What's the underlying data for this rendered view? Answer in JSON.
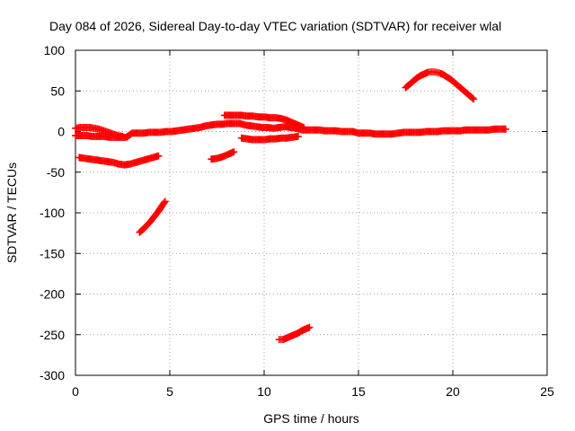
{
  "chart_data": {
    "type": "scatter",
    "title": "Day 084 of 2026, Sidereal Day-to-day VTEC variation (SDTVAR) for receiver wlal",
    "xlabel": "GPS time / hours",
    "ylabel": "SDTVAR / TECUs",
    "xlim": [
      0,
      25
    ],
    "ylim": [
      -300,
      100
    ],
    "xticks": [
      0,
      5,
      10,
      15,
      20,
      25
    ],
    "yticks": [
      -300,
      -250,
      -200,
      -150,
      -100,
      -50,
      0,
      50,
      100
    ],
    "xtick_labels": [
      "0",
      "5",
      "10",
      "15",
      "20",
      "25"
    ],
    "ytick_labels": [
      "-300",
      "-250",
      "-200",
      "-150",
      "-100",
      "-50",
      "0",
      "50",
      "100"
    ],
    "grid": true,
    "legend": "none",
    "marker": "plus",
    "color": "#ff0000",
    "series": [
      {
        "x": [
          0.0,
          0.3,
          0.6,
          0.9,
          1.2,
          1.5,
          1.8,
          2.1,
          2.4,
          2.7,
          3.0,
          3.3,
          3.6,
          3.9,
          4.2,
          4.5,
          4.8,
          5.1,
          5.4,
          5.7,
          6.0,
          6.3,
          6.6,
          6.9,
          7.2,
          7.5,
          7.8,
          8.1,
          8.4,
          8.7,
          9.0,
          9.3,
          9.6,
          9.9,
          10.2,
          10.5,
          10.8,
          11.1,
          11.4,
          11.7,
          12.0,
          12.3,
          12.6,
          12.9,
          13.2,
          13.5,
          13.8,
          14.1,
          14.4,
          14.7,
          15.0,
          15.3,
          15.6,
          15.9,
          16.2,
          16.5,
          16.8,
          17.1,
          17.4,
          17.7,
          18.0,
          18.3,
          18.6,
          18.9,
          19.2,
          19.5,
          19.8,
          20.1,
          20.4,
          20.7,
          21.0,
          21.3,
          21.6,
          21.9,
          22.2,
          22.5,
          22.8
        ],
        "y": [
          -5,
          -5,
          -5,
          -6,
          -6,
          -6,
          -7,
          -7,
          -7,
          -7,
          -2,
          -2,
          -2,
          -1,
          -1,
          -1,
          0,
          0,
          1,
          2,
          3,
          4,
          5,
          7,
          8,
          9,
          9,
          10,
          10,
          10,
          8,
          7,
          6,
          5,
          5,
          4,
          5,
          6,
          5,
          4,
          2,
          2,
          2,
          2,
          1,
          1,
          1,
          0,
          0,
          0,
          -2,
          -2,
          -2,
          -3,
          -3,
          -3,
          -3,
          -2,
          -1,
          -1,
          -1,
          -1,
          0,
          0,
          0,
          1,
          1,
          1,
          1,
          2,
          2,
          2,
          2,
          2,
          3,
          3,
          3
        ]
      },
      {
        "x": [
          0.0,
          0.25,
          0.5,
          0.75,
          1.0,
          1.25,
          1.5,
          1.75,
          2.0,
          2.25,
          2.5
        ],
        "y": [
          4,
          5,
          5,
          5,
          4,
          3,
          1,
          -1,
          -3,
          -5,
          -6
        ]
      },
      {
        "x": [
          7.9,
          8.2,
          8.5,
          8.8,
          9.1,
          9.4,
          9.7,
          10.0,
          10.3,
          10.6,
          10.9,
          11.2,
          11.5,
          11.8,
          12.1
        ],
        "y": [
          20,
          20,
          20,
          20,
          19,
          19,
          18,
          18,
          17,
          17,
          16,
          14,
          11,
          8,
          5
        ]
      },
      {
        "x": [
          8.8,
          9.1,
          9.4,
          9.7,
          10.0,
          10.3,
          10.6,
          10.9,
          11.2,
          11.5,
          11.8
        ],
        "y": [
          -8,
          -9,
          -10,
          -10,
          -10,
          -9,
          -9,
          -8,
          -8,
          -7,
          -6
        ]
      },
      {
        "x": [
          0.2,
          0.5,
          0.8,
          1.1,
          1.4,
          1.7,
          2.0,
          2.3,
          2.6,
          2.9,
          3.2,
          3.5,
          3.8,
          4.1,
          4.4
        ],
        "y": [
          -32,
          -33,
          -34,
          -35,
          -36,
          -37,
          -38,
          -40,
          -41,
          -40,
          -38,
          -36,
          -34,
          -32,
          -30
        ]
      },
      {
        "x": [
          7.2,
          7.5,
          7.8,
          8.1,
          8.4
        ],
        "y": [
          -34,
          -33,
          -31,
          -28,
          -25
        ]
      },
      {
        "x": [
          3.4,
          3.6,
          3.8,
          4.0,
          4.2,
          4.4,
          4.6,
          4.75
        ],
        "y": [
          -124,
          -120,
          -115,
          -110,
          -104,
          -98,
          -91,
          -86
        ]
      },
      {
        "x": [
          10.8,
          11.0,
          11.2,
          11.4,
          11.6,
          11.8,
          12.0,
          12.2,
          12.4
        ],
        "y": [
          -256,
          -256,
          -254,
          -252,
          -250,
          -248,
          -245,
          -243,
          -241
        ]
      },
      {
        "x": [
          17.5,
          17.7,
          17.9,
          18.1,
          18.3,
          18.5,
          18.7,
          18.9,
          19.1,
          19.3,
          19.5,
          19.7,
          19.9,
          20.1,
          20.3,
          20.5,
          20.7,
          20.9,
          21.1
        ],
        "y": [
          54,
          58,
          62,
          66,
          69,
          71,
          73,
          73.5,
          73,
          72,
          70,
          67,
          64,
          60,
          56,
          52,
          48,
          44,
          40
        ]
      }
    ]
  }
}
